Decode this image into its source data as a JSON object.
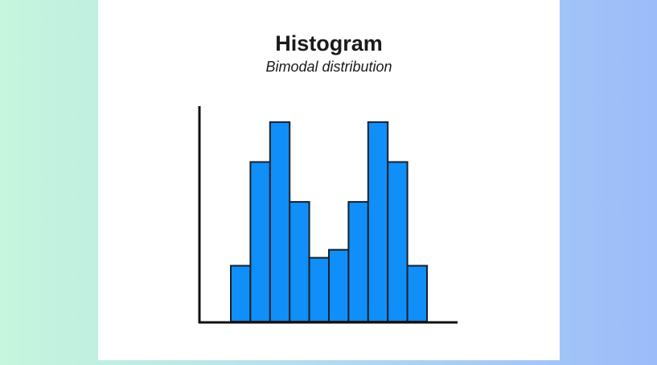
{
  "chart_data": {
    "type": "bar",
    "title": "Histogram",
    "subtitle": "Bimodal distribution",
    "categories": [
      null,
      null,
      null,
      null,
      null,
      null,
      null,
      null,
      null,
      null
    ],
    "values": [
      7,
      20,
      25,
      15,
      8,
      9,
      15,
      25,
      20,
      7
    ],
    "color": "#0f8ff7",
    "edge_color": "#17202c",
    "ylim": [
      0,
      27
    ]
  }
}
